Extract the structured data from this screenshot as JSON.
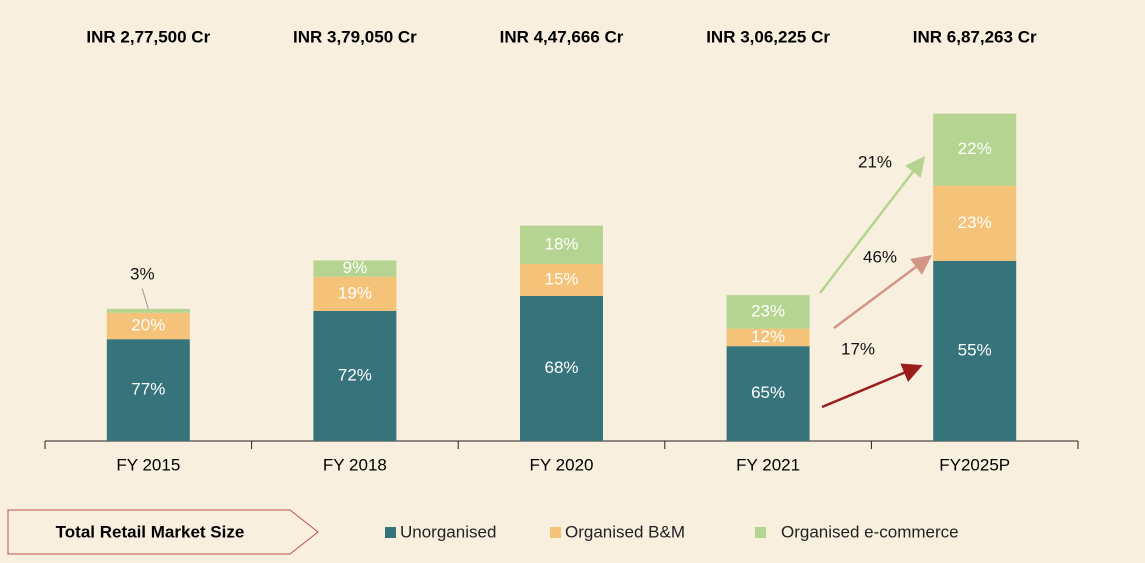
{
  "chart_data": {
    "type": "stacked-bar",
    "categories": [
      "FY 2015",
      "FY 2018",
      "FY 2020",
      "FY 2021",
      "FY2025P"
    ],
    "totals": [
      {
        "value": 277500,
        "label": "INR 2,77,500 Cr"
      },
      {
        "value": 379050,
        "label": "INR 3,79,050 Cr"
      },
      {
        "value": 447666,
        "label": "INR 4,47,666 Cr"
      },
      {
        "value": 306225,
        "label": "INR 3,06,225 Cr"
      },
      {
        "value": 687263,
        "label": "INR 6,87,263 Cr"
      }
    ],
    "series": [
      {
        "name": "Unorganised",
        "color": "#37737a",
        "values": [
          77,
          72,
          68,
          65,
          55
        ],
        "value_labels": [
          "77%",
          "72%",
          "68%",
          "65%",
          "55%"
        ]
      },
      {
        "name": "Organised B&M",
        "color": "#f5c27a",
        "values": [
          20,
          19,
          15,
          12,
          23
        ],
        "value_labels": [
          "20%",
          "19%",
          "15%",
          "12%",
          "23%"
        ]
      },
      {
        "name": "Organised e-commerce",
        "color": "#b5d491",
        "values": [
          3,
          9,
          18,
          23,
          22
        ],
        "value_labels": [
          "3%",
          "9%",
          "18%",
          "23%",
          "22%"
        ]
      }
    ],
    "ylim": [
      0,
      720000
    ],
    "annotations": [
      {
        "text": "21%",
        "color": "#b5d491"
      },
      {
        "text": "46%",
        "color": "#d39585"
      },
      {
        "text": "17%",
        "color": "#9b1c1c"
      }
    ],
    "legend_box": "Total Retail Market Size"
  }
}
